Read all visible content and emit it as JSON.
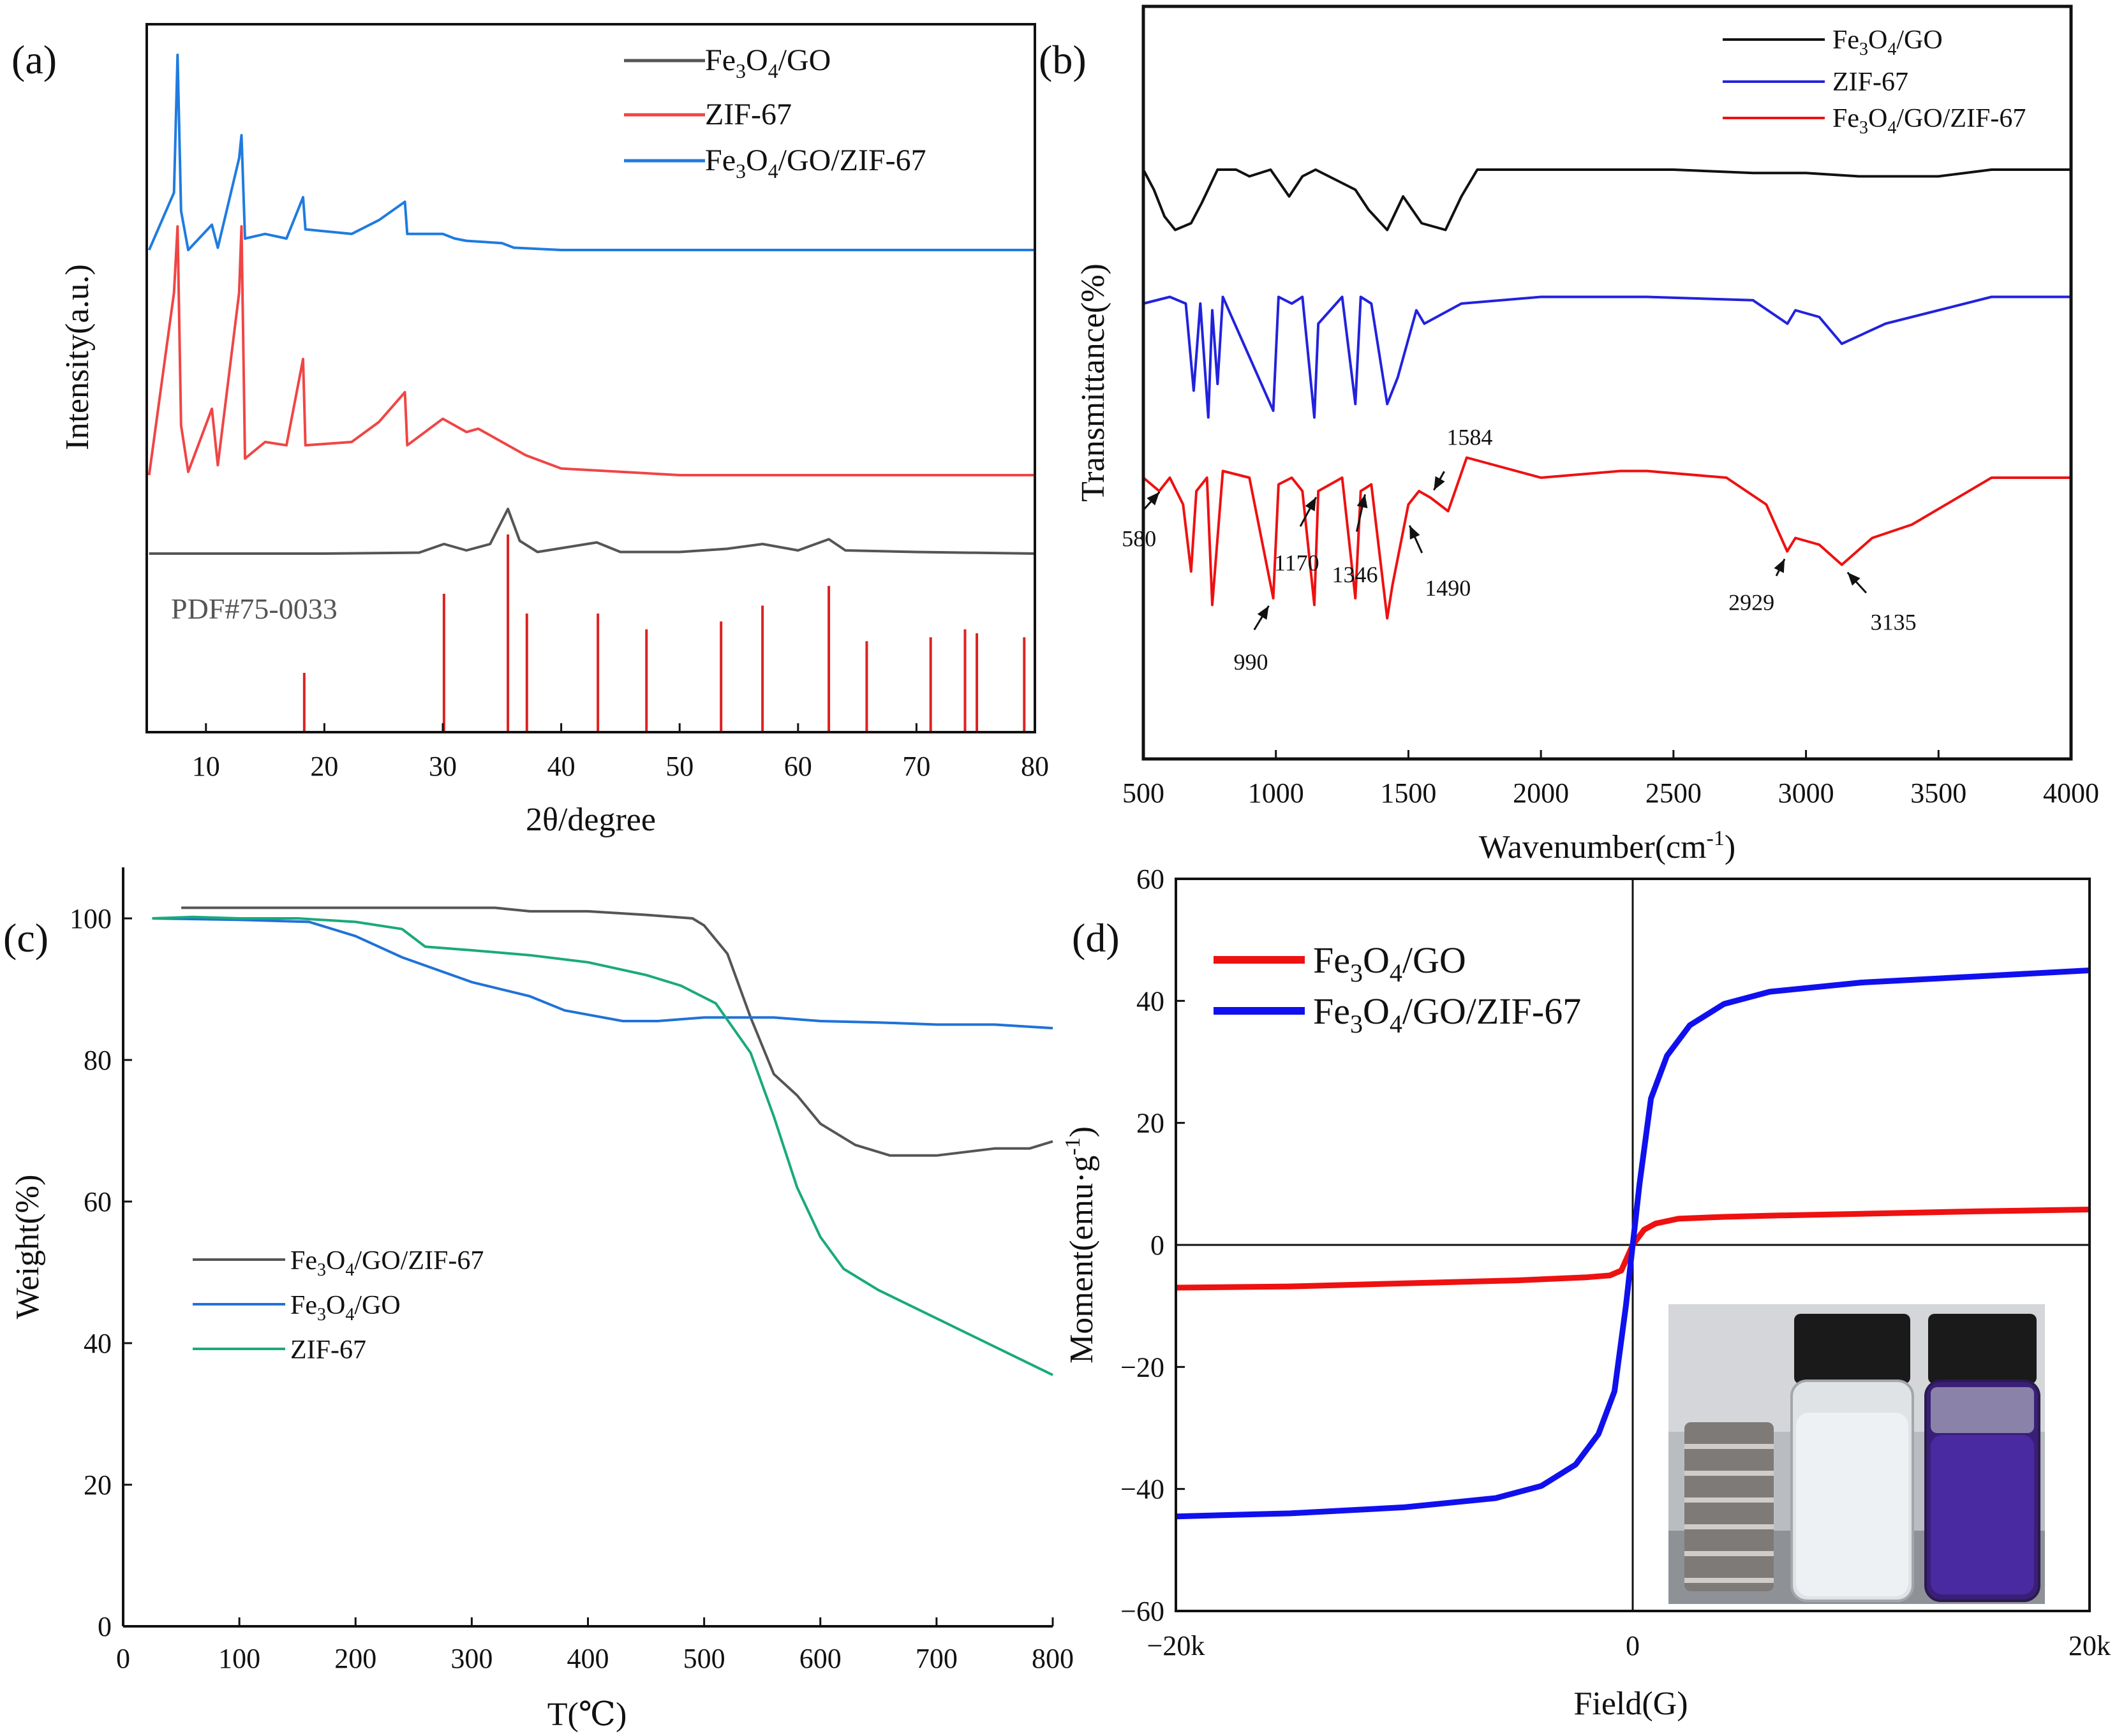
{
  "chart_data": [
    {
      "panel": "(a)",
      "type": "line",
      "xlabel": "2θ/degree",
      "ylabel": "Intensity(a.u.)",
      "xlim": [
        5,
        80
      ],
      "xticks": [
        10,
        20,
        30,
        40,
        50,
        60,
        70,
        80
      ],
      "reference_label": "PDF#75-0033",
      "legend": [
        "Fe3O4/GO",
        "ZIF-67",
        "Fe3O4/GO/ZIF-67"
      ],
      "series": [
        {
          "name": "Fe3O4/GO/ZIF-67",
          "color": "#1f7be0",
          "baseline": 15,
          "x": [
            5.2,
            7.3,
            7.6,
            7.9,
            8.5,
            10.5,
            11,
            12.8,
            13.0,
            13.3,
            15,
            16.8,
            18.2,
            18.4,
            22.3,
            24.6,
            26.8,
            27.0,
            30,
            31,
            32,
            35,
            36,
            40,
            45,
            50,
            55,
            60,
            70,
            80
          ],
          "y": [
            15,
            40,
            100,
            32,
            15,
            26,
            16,
            55,
            65,
            20,
            22,
            20,
            38,
            24,
            22,
            28,
            36,
            22,
            22,
            20,
            19,
            18,
            16,
            15,
            15,
            15,
            15,
            15,
            15,
            15
          ]
        },
        {
          "name": "ZIF-67",
          "color": "#f04545",
          "baseline": 5,
          "x": [
            5.2,
            7.3,
            7.6,
            7.9,
            8.5,
            10.5,
            11,
            12.8,
            13.0,
            13.3,
            15,
            16.8,
            18.2,
            18.4,
            22.3,
            24.6,
            26.8,
            27.0,
            30,
            31,
            32,
            33,
            35,
            37,
            40,
            45,
            50,
            60,
            70,
            80
          ],
          "y": [
            5,
            60,
            80,
            20,
            6,
            25,
            8,
            60,
            80,
            10,
            15,
            14,
            40,
            14,
            15,
            21,
            30,
            14,
            22,
            20,
            18,
            19,
            15,
            11,
            7,
            6,
            5,
            5,
            5,
            5
          ]
        },
        {
          "name": "Fe3O4/GO",
          "color": "#555555",
          "baseline": 0,
          "x": [
            5.2,
            10,
            20,
            28,
            30.1,
            32,
            34,
            35.5,
            36.5,
            38,
            43,
            45,
            50,
            54,
            57,
            60,
            62.6,
            64,
            70,
            80
          ],
          "y": [
            0,
            0,
            0,
            0.3,
            3,
            1,
            3,
            14,
            4,
            0.5,
            3.5,
            0.5,
            0.5,
            1.5,
            3,
            1,
            4.5,
            1,
            0.5,
            0
          ]
        }
      ],
      "reference_peaks": {
        "color": "#dd2222",
        "positions": [
          18.3,
          30.1,
          35.5,
          37.1,
          43.1,
          47.2,
          53.5,
          57.0,
          62.6,
          65.8,
          71.2,
          74.1,
          75.1,
          79.1
        ],
        "relative_intensity": [
          30,
          70,
          100,
          60,
          60,
          52,
          56,
          64,
          74,
          46,
          48,
          52,
          50,
          48
        ]
      }
    },
    {
      "panel": "(b)",
      "type": "line",
      "xlabel": "Wavenumber(cm",
      "xlabel_sup": "-1",
      "xlabel_end": ")",
      "ylabel": "Transmittance(%)",
      "xlim": [
        500,
        4000
      ],
      "xticks": [
        500,
        1000,
        1500,
        2000,
        2500,
        3000,
        3500,
        4000
      ],
      "legend": [
        "Fe3O4/GO",
        "ZIF-67",
        "Fe3O4/GO/ZIF-67"
      ],
      "series": [
        {
          "name": "Fe3O4/GO",
          "color": "#111111",
          "baseline": 88,
          "x": [
            500,
            540,
            580,
            620,
            680,
            720,
            780,
            850,
            900,
            980,
            1050,
            1100,
            1150,
            1250,
            1300,
            1350,
            1420,
            1480,
            1550,
            1640,
            1700,
            1760,
            1900,
            2000,
            2200,
            2500,
            2800,
            3000,
            3200,
            3500,
            3700,
            4000
          ],
          "y": [
            88,
            85,
            81,
            79,
            80,
            83,
            88,
            88,
            87,
            88,
            84,
            87,
            88,
            86,
            85,
            82,
            79,
            84,
            80,
            79,
            84,
            88,
            88,
            88,
            88,
            88,
            87.5,
            87.5,
            87,
            87,
            88,
            88
          ]
        },
        {
          "name": "ZIF-67",
          "color": "#2222dd",
          "baseline": 69,
          "x": [
            500,
            600,
            660,
            690,
            715,
            745,
            760,
            780,
            800,
            990,
            1010,
            1060,
            1100,
            1145,
            1160,
            1250,
            1300,
            1320,
            1360,
            1420,
            1460,
            1530,
            1560,
            1700,
            2000,
            2400,
            2800,
            2930,
            2960,
            3050,
            3135,
            3300,
            3500,
            3700,
            4000
          ],
          "y": [
            68,
            69,
            68,
            55,
            68,
            51,
            67,
            56,
            69,
            52,
            69,
            68,
            69,
            51,
            65,
            69,
            53,
            69,
            68,
            53,
            57,
            67,
            65,
            68,
            69,
            69,
            68.5,
            65,
            67,
            66,
            62,
            65,
            67,
            69,
            69
          ]
        },
        {
          "name": "Fe3O4/GO/ZIF-67",
          "color": "#ee1111",
          "baseline": 42,
          "x": [
            500,
            560,
            600,
            650,
            680,
            700,
            740,
            760,
            800,
            900,
            990,
            1010,
            1060,
            1100,
            1145,
            1160,
            1250,
            1300,
            1320,
            1360,
            1420,
            1440,
            1500,
            1540,
            1584,
            1650,
            1720,
            2000,
            2300,
            2400,
            2700,
            2850,
            2929,
            2960,
            3050,
            3135,
            3250,
            3400,
            3700,
            4000
          ],
          "y": [
            42,
            40,
            42,
            38,
            28,
            40,
            42,
            23,
            43,
            42,
            24,
            41,
            42,
            40,
            23,
            40,
            42,
            24,
            40,
            41,
            21,
            26,
            38,
            40,
            39,
            37,
            45,
            42,
            43,
            43,
            42,
            38,
            31,
            33,
            32,
            29,
            33,
            35,
            42,
            42
          ]
        }
      ],
      "annotations": [
        {
          "label": "580",
          "x": 580
        },
        {
          "label": "990",
          "x": 990
        },
        {
          "label": "1170",
          "x": 1170
        },
        {
          "label": "1346",
          "x": 1346
        },
        {
          "label": "1490",
          "x": 1490
        },
        {
          "label": "1584",
          "x": 1584
        },
        {
          "label": "2929",
          "x": 2929
        },
        {
          "label": "3135",
          "x": 3135
        }
      ]
    },
    {
      "panel": "(c)",
      "type": "line",
      "xlabel": "T(℃)",
      "ylabel": "Weight(%)",
      "xlim": [
        0,
        800
      ],
      "ylim": [
        0,
        105
      ],
      "xticks": [
        0,
        100,
        200,
        300,
        400,
        500,
        600,
        700,
        800
      ],
      "yticks": [
        0,
        20,
        40,
        60,
        80,
        100
      ],
      "legend": [
        "Fe3O4/GO/ZIF-67",
        "Fe3O4/GO",
        "ZIF-67"
      ],
      "series": [
        {
          "name": "Fe3O4/GO/ZIF-67",
          "color": "#555555",
          "x": [
            50,
            100,
            200,
            320,
            350,
            400,
            450,
            490,
            500,
            520,
            540,
            560,
            580,
            600,
            630,
            660,
            700,
            750,
            780,
            800
          ],
          "y": [
            101.5,
            101.5,
            101.5,
            101.5,
            101,
            101,
            100.5,
            100,
            99,
            95,
            86,
            78,
            75,
            71,
            68,
            66.5,
            66.5,
            67.5,
            67.5,
            68.5
          ]
        },
        {
          "name": "Fe3O4/GO",
          "color": "#1f72d8",
          "x": [
            25,
            100,
            160,
            200,
            240,
            300,
            350,
            380,
            430,
            460,
            500,
            540,
            560,
            600,
            650,
            700,
            750,
            800
          ],
          "y": [
            100,
            99.8,
            99.5,
            97.5,
            94.5,
            91,
            89,
            87,
            85.5,
            85.5,
            86,
            86,
            86,
            85.5,
            85.3,
            85,
            85,
            84.5
          ]
        },
        {
          "name": "ZIF-67",
          "color": "#1aaa7a",
          "x": [
            25,
            60,
            100,
            150,
            200,
            240,
            260,
            300,
            350,
            400,
            450,
            480,
            510,
            540,
            560,
            580,
            600,
            620,
            650,
            700,
            750,
            800
          ],
          "y": [
            100,
            100.2,
            100,
            100,
            99.5,
            98.5,
            96,
            95.5,
            94.8,
            93.8,
            92,
            90.5,
            88,
            81,
            72,
            62,
            55,
            50.5,
            47.5,
            43.5,
            39.5,
            35.5
          ]
        }
      ]
    },
    {
      "panel": "(d)",
      "type": "line",
      "xlabel": "Field(G)",
      "ylabel": "Moment(emu·g",
      "ylabel_sup": "-1",
      "ylabel_end": ")",
      "xlim": [
        -20000,
        20000
      ],
      "ylim": [
        -60,
        60
      ],
      "xticks": [
        -20000,
        0,
        20000
      ],
      "xtick_labels": [
        "−20k",
        "0",
        "20k"
      ],
      "yticks": [
        -60,
        -40,
        -20,
        0,
        20,
        40,
        60
      ],
      "ytick_labels": [
        "−60",
        "−40",
        "−20",
        "0",
        "20",
        "40",
        "60"
      ],
      "legend": [
        "Fe3O4/GO",
        "Fe3O4/GO/ZIF-67"
      ],
      "series": [
        {
          "name": "Fe3O4/GO",
          "color": "#ee1111",
          "x": [
            -20000,
            -15000,
            -10000,
            -5000,
            -2000,
            -1000,
            -500,
            0,
            500,
            1000,
            2000,
            4000,
            6000,
            10000,
            15000,
            20000
          ],
          "y": [
            -7,
            -6.8,
            -6.3,
            -5.8,
            -5.3,
            -5,
            -4.2,
            0,
            2.5,
            3.5,
            4.3,
            4.6,
            4.8,
            5.1,
            5.5,
            5.8
          ]
        },
        {
          "name": "Fe3O4/GO/ZIF-67",
          "color": "#1010ee",
          "x": [
            -20000,
            -15000,
            -10000,
            -6000,
            -4000,
            -2500,
            -1500,
            -800,
            -300,
            0,
            300,
            800,
            1500,
            2500,
            4000,
            6000,
            10000,
            15000,
            20000
          ],
          "y": [
            -44.5,
            -44,
            -43,
            -41.5,
            -39.5,
            -36,
            -31,
            -24,
            -10,
            0,
            10,
            24,
            31,
            36,
            39.5,
            41.5,
            43,
            44,
            45
          ]
        }
      ]
    }
  ],
  "legend_text": {
    "fe_go": {
      "a": "Fe",
      "s1": "3",
      "b": "O",
      "s2": "4",
      "c": "/GO"
    },
    "fe_go_zif": {
      "a": "Fe",
      "s1": "3",
      "b": "O",
      "s2": "4",
      "c": "/GO/ZIF-67"
    },
    "zif": "ZIF-67"
  }
}
